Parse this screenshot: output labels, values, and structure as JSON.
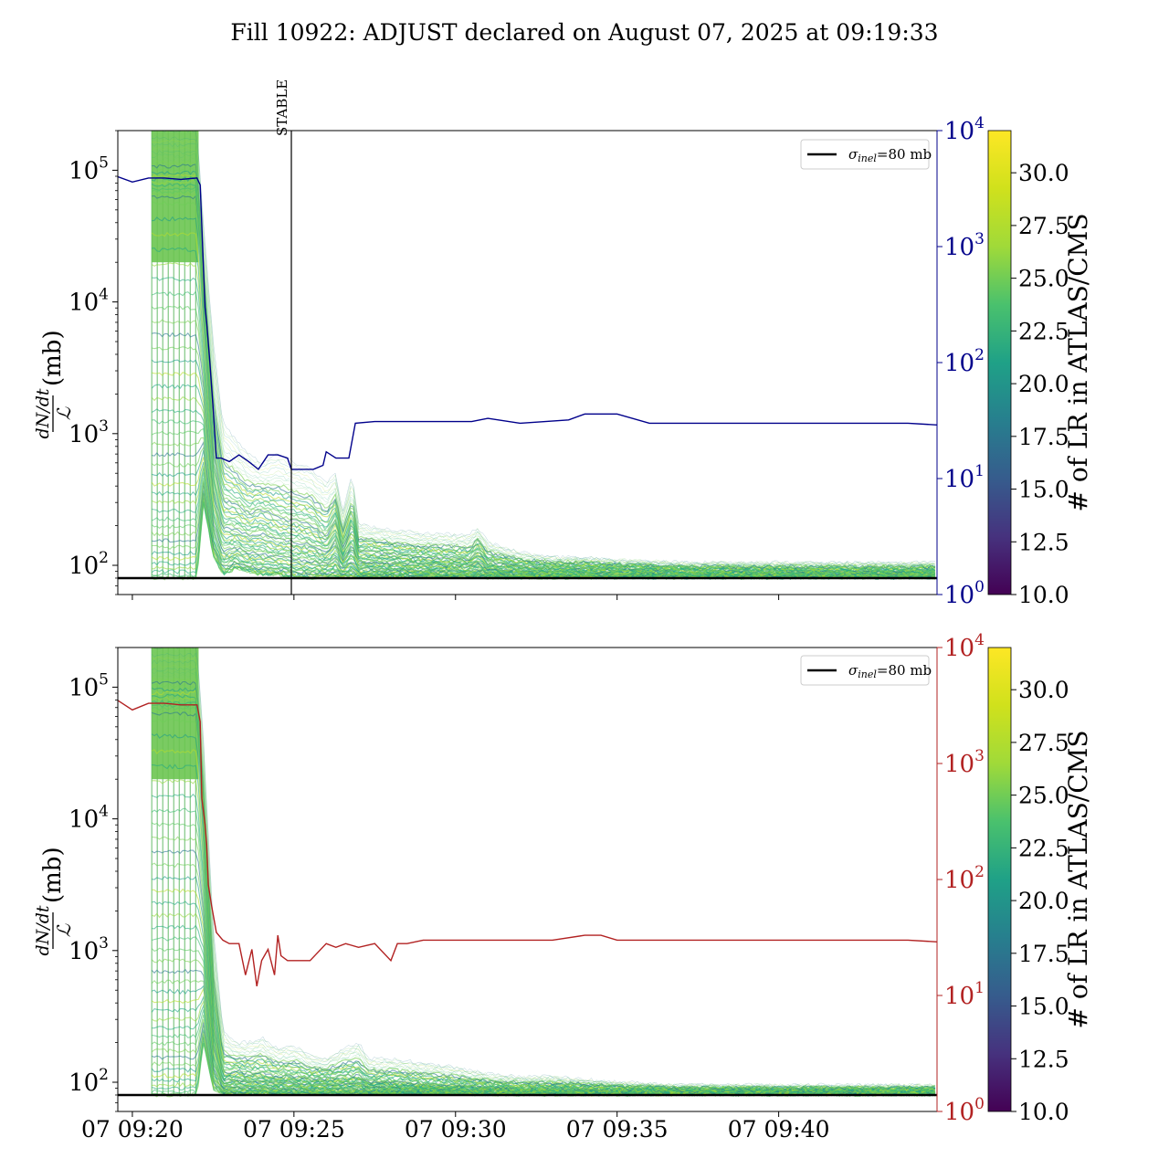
{
  "figure": {
    "title": "Fill 10922: ADJUST declared on August 07, 2025 at 09:19:33"
  },
  "colors": {
    "lumi_top": "#00008b",
    "lumi_bottom": "#b22222",
    "sigma_line": "#000000",
    "stable_line": "#000000"
  },
  "chart_data": [
    {
      "type": "line",
      "panel": "top",
      "ylabel_left": "dN/dt / ℒ (mb)",
      "ylabel_left_numerator": "dN/dt",
      "ylabel_left_denominator": "ℒ",
      "ylabel_left_unit": "(mb)",
      "yscale_left": "log",
      "ylim_left": [
        60,
        200000
      ],
      "yticks_left": [
        {
          "value": 100,
          "base": "10",
          "exp": "2"
        },
        {
          "value": 1000,
          "base": "10",
          "exp": "3"
        },
        {
          "value": 10000,
          "base": "10",
          "exp": "4"
        },
        {
          "value": 100000,
          "base": "10",
          "exp": "5"
        }
      ],
      "yscale_right": "log",
      "ylim_right": [
        1,
        10000
      ],
      "yticks_right": [
        {
          "value": 1,
          "base": "10",
          "exp": "0"
        },
        {
          "value": 10,
          "base": "10",
          "exp": "1"
        },
        {
          "value": 100,
          "base": "10",
          "exp": "2"
        },
        {
          "value": 1000,
          "base": "10",
          "exp": "3"
        },
        {
          "value": 10000,
          "base": "10",
          "exp": "4"
        }
      ],
      "xlim_min": [
        -0.45,
        24.9
      ],
      "vertical_marker": {
        "x_min": 4.92,
        "label": "STABLE"
      },
      "hline": {
        "value": 80,
        "legend_text": "=80 mb",
        "legend_symbol": "σ",
        "legend_sub": "inel"
      },
      "legend_placement": "upper-right",
      "colorbar": {
        "label": "# of LR in ATLAS/CMS",
        "range": [
          10,
          32
        ],
        "ticks": [
          "10.0",
          "12.5",
          "15.0",
          "17.5",
          "20.0",
          "22.5",
          "25.0",
          "27.5",
          "30.0"
        ],
        "cmap": "viridis"
      },
      "series_right": {
        "color": "#00008b",
        "x_min": [
          -0.45,
          0,
          0.5,
          1.0,
          1.5,
          2.0,
          2.1,
          2.25,
          2.3,
          2.4,
          2.5,
          2.6,
          2.75,
          3.0,
          3.3,
          3.6,
          3.9,
          4.2,
          4.5,
          4.8,
          4.92,
          5.3,
          5.6,
          5.9,
          6.0,
          6.3,
          6.7,
          6.9,
          7.5,
          8.5,
          9.5,
          10.5,
          11.0,
          12.0,
          13.5,
          14.0,
          14.5,
          15.0,
          16.0,
          18.0,
          20.0,
          22.0,
          24.0,
          24.9
        ],
        "values": [
          4000,
          3600,
          3900,
          3900,
          3800,
          3900,
          3400,
          300,
          220,
          100,
          40,
          15,
          15,
          14,
          16,
          14,
          12,
          16,
          16,
          15,
          12,
          12,
          12,
          13,
          17,
          15,
          15,
          30,
          31,
          31,
          31,
          31,
          33,
          30,
          32,
          36,
          36,
          36,
          30,
          30,
          30,
          30,
          30,
          29
        ]
      },
      "bundle_envelope": {
        "x_min": [
          0.6,
          2.0,
          2.2,
          2.5,
          2.8,
          3.2,
          3.6,
          4.0,
          4.5,
          5.0,
          5.5,
          6.0,
          6.3,
          6.5,
          6.8,
          7.0,
          7.3,
          8.0,
          9.0,
          10.4,
          10.7,
          11.0,
          12.0,
          13.0,
          14.0,
          15.0,
          17.0,
          20.0,
          24.9
        ],
        "upper": [
          200000,
          200000,
          40000,
          5000,
          1200,
          900,
          700,
          600,
          700,
          600,
          550,
          420,
          500,
          250,
          480,
          210,
          200,
          185,
          175,
          170,
          195,
          150,
          125,
          115,
          115,
          110,
          105,
          105,
          105
        ],
        "median": [
          60000,
          60000,
          8000,
          700,
          300,
          280,
          240,
          260,
          220,
          210,
          200,
          160,
          220,
          130,
          200,
          125,
          125,
          120,
          115,
          110,
          125,
          105,
          98,
          96,
          96,
          95,
          92,
          91,
          91
        ],
        "lower": [
          80,
          80,
          300,
          120,
          85,
          95,
          90,
          85,
          85,
          82,
          80,
          82,
          82,
          82,
          82,
          82,
          82,
          82,
          82,
          82,
          82,
          81,
          81,
          81,
          81,
          81,
          81,
          81,
          81
        ]
      }
    },
    {
      "type": "line",
      "panel": "bottom",
      "ylabel_left": "dN/dt / ℒ (mb)",
      "ylabel_left_numerator": "dN/dt",
      "ylabel_left_denominator": "ℒ",
      "ylabel_left_unit": "(mb)",
      "yscale_left": "log",
      "ylim_left": [
        60,
        200000
      ],
      "yticks_left": [
        {
          "value": 100,
          "base": "10",
          "exp": "2"
        },
        {
          "value": 1000,
          "base": "10",
          "exp": "3"
        },
        {
          "value": 10000,
          "base": "10",
          "exp": "4"
        },
        {
          "value": 100000,
          "base": "10",
          "exp": "5"
        }
      ],
      "yscale_right": "log",
      "ylim_right": [
        1,
        10000
      ],
      "yticks_right": [
        {
          "value": 1,
          "base": "10",
          "exp": "0"
        },
        {
          "value": 10,
          "base": "10",
          "exp": "1"
        },
        {
          "value": 100,
          "base": "10",
          "exp": "2"
        },
        {
          "value": 1000,
          "base": "10",
          "exp": "3"
        },
        {
          "value": 10000,
          "base": "10",
          "exp": "4"
        }
      ],
      "xlim_min": [
        -0.45,
        24.9
      ],
      "xticks": [
        {
          "value": 0,
          "label": "07 09:20"
        },
        {
          "value": 5,
          "label": "07 09:25"
        },
        {
          "value": 10,
          "label": "07 09:30"
        },
        {
          "value": 15,
          "label": "07 09:35"
        },
        {
          "value": 20,
          "label": "07 09:40"
        }
      ],
      "hline": {
        "value": 80,
        "legend_text": "=80 mb",
        "legend_symbol": "σ",
        "legend_sub": "inel"
      },
      "legend_placement": "upper-right",
      "colorbar": {
        "label": "# of LR in ATLAS/CMS",
        "range": [
          10,
          32
        ],
        "ticks": [
          "10.0",
          "12.5",
          "15.0",
          "17.5",
          "20.0",
          "22.5",
          "25.0",
          "27.5",
          "30.0"
        ],
        "cmap": "viridis"
      },
      "series_right": {
        "color": "#b22222",
        "x_min": [
          -0.45,
          0,
          0.5,
          1.0,
          1.5,
          2.0,
          2.1,
          2.15,
          2.25,
          2.3,
          2.35,
          2.45,
          2.6,
          2.8,
          3.0,
          3.3,
          3.5,
          3.7,
          3.85,
          4.0,
          4.2,
          4.4,
          4.5,
          4.6,
          4.8,
          5.0,
          5.5,
          6.0,
          6.3,
          6.6,
          7.0,
          7.5,
          8.0,
          8.2,
          8.5,
          9.0,
          10.0,
          12.0,
          13.0,
          14.0,
          14.5,
          15.0,
          16.0,
          18.0,
          20.0,
          22.0,
          24.0,
          24.9
        ],
        "values": [
          3500,
          2900,
          3300,
          3300,
          3200,
          3200,
          2300,
          500,
          300,
          200,
          90,
          60,
          35,
          30,
          28,
          28,
          15,
          25,
          12,
          20,
          25,
          15,
          33,
          22,
          20,
          20,
          20,
          28,
          26,
          28,
          26,
          28,
          20,
          28,
          28,
          30,
          30,
          30,
          30,
          33,
          33,
          30,
          30,
          30,
          30,
          30,
          30,
          29
        ]
      },
      "bundle_envelope": {
        "x_min": [
          0.6,
          2.0,
          2.2,
          2.5,
          2.8,
          3.2,
          3.6,
          4.0,
          4.5,
          5.0,
          5.5,
          6.0,
          6.5,
          7.0,
          7.3,
          8.0,
          9.0,
          10.0,
          11.0,
          12.0,
          13.0,
          14.0,
          15.0,
          17.0,
          20.0,
          24.9
        ],
        "upper": [
          200000,
          200000,
          40000,
          1500,
          250,
          200,
          200,
          220,
          180,
          190,
          160,
          150,
          180,
          200,
          150,
          150,
          140,
          130,
          115,
          110,
          110,
          105,
          100,
          95,
          95,
          95
        ],
        "median": [
          60000,
          60000,
          8000,
          300,
          115,
          120,
          115,
          115,
          110,
          110,
          105,
          105,
          108,
          110,
          100,
          100,
          96,
          94,
          92,
          90,
          90,
          90,
          88,
          87,
          87,
          87
        ],
        "lower": [
          80,
          80,
          200,
          90,
          82,
          82,
          82,
          82,
          82,
          82,
          82,
          82,
          82,
          82,
          82,
          82,
          82,
          82,
          81,
          81,
          81,
          81,
          81,
          81,
          81,
          81
        ]
      }
    }
  ]
}
